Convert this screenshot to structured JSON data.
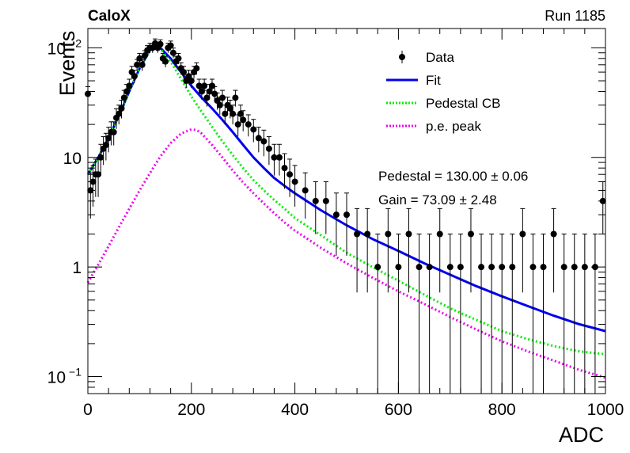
{
  "header": {
    "left_label": "CaloX",
    "right_label": "Run 1185"
  },
  "fit_results": [
    {
      "text": "Pedestal = 130.00 ± 0.06"
    },
    {
      "text": "Gain = 73.09 ± 2.48"
    }
  ],
  "colors": {
    "data": "#000000",
    "fit": "#0000ee",
    "pedestal": "#00ee00",
    "pe": "#ee00ee"
  },
  "chart_data": {
    "type": "scatter",
    "title": "",
    "xlabel": "ADC",
    "ylabel": "Events",
    "xlim": [
      0,
      1000
    ],
    "ylim": [
      0.07,
      150
    ],
    "yscale": "log",
    "x_ticks": [
      {
        "v": 0,
        "label": "0"
      },
      {
        "v": 200,
        "label": "200"
      },
      {
        "v": 400,
        "label": "400"
      },
      {
        "v": 600,
        "label": "600"
      },
      {
        "v": 800,
        "label": "800"
      },
      {
        "v": 1000,
        "label": "1000"
      }
    ],
    "y_ticks": [
      {
        "v": 0.1,
        "base": "10",
        "exp": "−1"
      },
      {
        "v": 1,
        "base": "1",
        "exp": ""
      },
      {
        "v": 10,
        "base": "10",
        "exp": ""
      },
      {
        "v": 100,
        "base": "10",
        "exp": "2"
      }
    ],
    "legend_position": "top-right",
    "legend": [
      {
        "label": "Data",
        "style": "marker"
      },
      {
        "label": "Fit",
        "style": "solid"
      },
      {
        "label": "Pedestal CB",
        "style": "dotted"
      },
      {
        "label": "p.e. peak",
        "style": "dotted"
      }
    ],
    "series": [
      {
        "name": "Data",
        "kind": "points",
        "x": [
          0,
          5,
          10,
          15,
          20,
          25,
          30,
          35,
          40,
          45,
          50,
          55,
          60,
          65,
          70,
          75,
          80,
          85,
          90,
          95,
          100,
          105,
          110,
          115,
          120,
          125,
          130,
          135,
          140,
          145,
          150,
          155,
          160,
          165,
          170,
          175,
          180,
          185,
          190,
          195,
          200,
          205,
          210,
          215,
          220,
          225,
          230,
          235,
          240,
          245,
          250,
          255,
          260,
          265,
          270,
          275,
          280,
          285,
          290,
          295,
          300,
          310,
          320,
          330,
          340,
          350,
          360,
          370,
          380,
          390,
          400,
          420,
          440,
          460,
          480,
          500,
          520,
          540,
          560,
          580,
          600,
          620,
          640,
          660,
          680,
          700,
          720,
          740,
          760,
          780,
          800,
          820,
          840,
          860,
          880,
          900,
          920,
          940,
          960,
          980,
          995
        ],
        "y": [
          38,
          5,
          6,
          7,
          7,
          10,
          12,
          13,
          15,
          17,
          17,
          23,
          25,
          28,
          35,
          40,
          45,
          60,
          55,
          70,
          80,
          70,
          85,
          95,
          100,
          100,
          110,
          100,
          108,
          80,
          75,
          100,
          105,
          90,
          75,
          80,
          65,
          60,
          50,
          55,
          50,
          60,
          65,
          45,
          40,
          45,
          35,
          40,
          45,
          38,
          33,
          30,
          35,
          25,
          30,
          28,
          25,
          35,
          20,
          25,
          22,
          20,
          18,
          15,
          14,
          12,
          10,
          10,
          8,
          7,
          6,
          5,
          4,
          4,
          3,
          3,
          2,
          2,
          1,
          2,
          1,
          2,
          1,
          1,
          2,
          1,
          1,
          2,
          1,
          1,
          1,
          1,
          2,
          1,
          1,
          2,
          1,
          1,
          1,
          1,
          4
        ]
      },
      {
        "name": "Fit",
        "kind": "line",
        "x": [
          0,
          20,
          40,
          60,
          80,
          100,
          120,
          130,
          140,
          160,
          180,
          200,
          220,
          240,
          260,
          280,
          300,
          320,
          340,
          360,
          380,
          400,
          450,
          500,
          550,
          600,
          650,
          700,
          750,
          800,
          850,
          900,
          950,
          1000
        ],
        "y": [
          7,
          10,
          15,
          24,
          40,
          65,
          95,
          105,
          100,
          80,
          60,
          45,
          35,
          28,
          22,
          17,
          13,
          10,
          8,
          6.5,
          5.5,
          4.7,
          3.3,
          2.4,
          1.8,
          1.4,
          1.08,
          0.85,
          0.67,
          0.54,
          0.44,
          0.36,
          0.3,
          0.26
        ]
      },
      {
        "name": "Pedestal CB",
        "kind": "line",
        "x": [
          0,
          20,
          40,
          60,
          80,
          100,
          120,
          130,
          140,
          160,
          180,
          200,
          220,
          240,
          260,
          280,
          300,
          320,
          340,
          360,
          380,
          400,
          450,
          500,
          550,
          600,
          650,
          700,
          750,
          800,
          850,
          900,
          950,
          1000
        ],
        "y": [
          7,
          10,
          15,
          24,
          40,
          65,
          95,
          105,
          98,
          75,
          52,
          36,
          26,
          19,
          14,
          10.5,
          8,
          6.2,
          5,
          4.1,
          3.4,
          2.8,
          1.95,
          1.35,
          1.0,
          0.75,
          0.56,
          0.42,
          0.33,
          0.26,
          0.22,
          0.19,
          0.17,
          0.16
        ]
      },
      {
        "name": "p.e. peak",
        "kind": "line",
        "x": [
          0,
          20,
          40,
          60,
          80,
          100,
          120,
          140,
          160,
          180,
          200,
          210,
          220,
          240,
          260,
          280,
          300,
          320,
          340,
          360,
          380,
          400,
          450,
          500,
          550,
          600,
          650,
          700,
          750,
          800,
          850,
          900,
          950,
          1000
        ],
        "y": [
          0.72,
          1.05,
          1.55,
          2.3,
          3.4,
          5.0,
          7.2,
          10.2,
          13.5,
          16.5,
          18,
          17.8,
          16.5,
          13,
          10,
          7.6,
          5.9,
          4.7,
          3.8,
          3.1,
          2.55,
          2.15,
          1.5,
          1.08,
          0.8,
          0.6,
          0.46,
          0.35,
          0.27,
          0.21,
          0.17,
          0.14,
          0.115,
          0.098
        ]
      }
    ]
  }
}
